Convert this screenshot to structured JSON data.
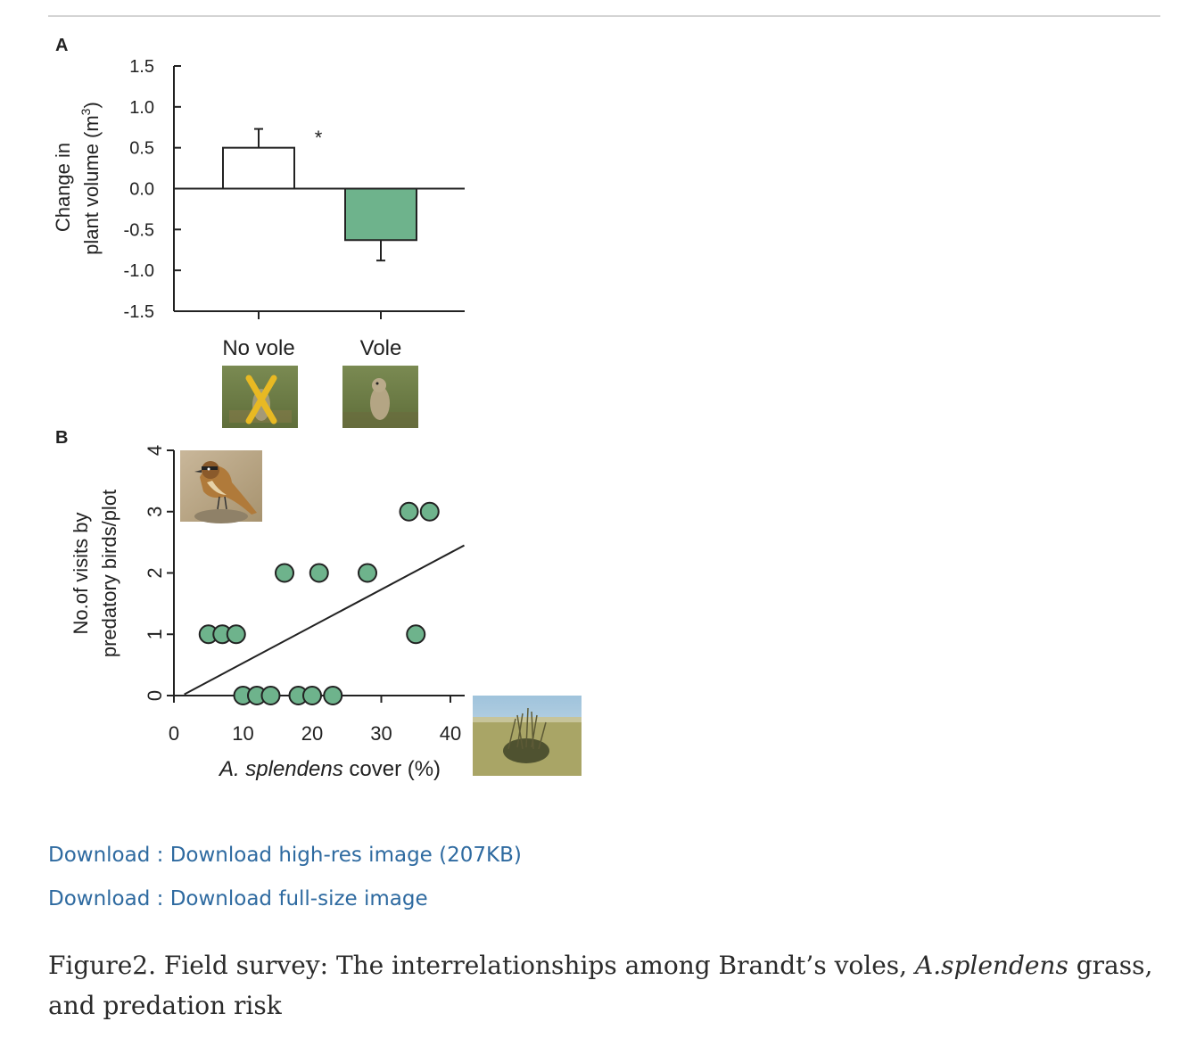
{
  "figure": {
    "panel_a_label": "A",
    "panel_b_label": "B",
    "colors": {
      "bar_vole": "#6eb38c",
      "point_fill": "#6eb38c",
      "axis": "#222222"
    },
    "photos": {
      "no_vole": "no-vole-photo-crossed",
      "vole": "vole-photo",
      "bird": "predatory-bird-photo",
      "grass": "grass-photo"
    }
  },
  "chart_data": [
    {
      "type": "bar",
      "panel": "A",
      "categories": [
        "No vole",
        "Vole"
      ],
      "values": [
        0.5,
        -0.63
      ],
      "errors": [
        0.23,
        0.25
      ],
      "bar_colors": [
        "#ffffff",
        "#6eb38c"
      ],
      "significance": "*",
      "ylabel_line1": "Change in",
      "ylabel_line2": "plant volume (m",
      "ylabel_sup": "3",
      "ylabel_end": ")",
      "ylim": [
        -1.5,
        1.5
      ],
      "yticks": [
        "1.5",
        "1.0",
        "0.5",
        "0.0",
        "-0.5",
        "-1.0",
        "-1.5"
      ],
      "ytick_values": [
        1.5,
        1.0,
        0.5,
        0.0,
        -0.5,
        -1.0,
        -1.5
      ]
    },
    {
      "type": "scatter",
      "panel": "B",
      "x": [
        5,
        7,
        9,
        10,
        12,
        14,
        18,
        20,
        23,
        16,
        21,
        28,
        34,
        35,
        37
      ],
      "y": [
        1,
        1,
        1,
        0,
        0,
        0,
        0,
        0,
        0,
        2,
        2,
        2,
        3,
        1,
        3
      ],
      "fit_line": {
        "x": [
          1.5,
          42
        ],
        "y": [
          0.02,
          2.45
        ]
      },
      "xlabel_italic": "A. splendens",
      "xlabel_rest": " cover (%)",
      "ylabel_line1": "No.of visits by",
      "ylabel_line2": "predatory birds/plot",
      "xlim": [
        0,
        42
      ],
      "ylim": [
        0,
        4
      ],
      "xticks": [
        "0",
        "10",
        "20",
        "30",
        "40"
      ],
      "xtick_values": [
        0,
        10,
        20,
        30,
        40
      ],
      "yticks": [
        "0",
        "1",
        "2",
        "3",
        "4"
      ],
      "ytick_values": [
        0,
        1,
        2,
        3,
        4
      ]
    }
  ],
  "links": [
    {
      "prefix": "Download : ",
      "label": "Download high-res image (207KB)"
    },
    {
      "prefix": "Download : ",
      "label": "Download full-size image"
    }
  ],
  "caption": {
    "lead": "Figure2. Field survey: The interrelationships among Brandt’s voles, ",
    "species": "A.splendens",
    "tail": " grass, and predation risk"
  }
}
